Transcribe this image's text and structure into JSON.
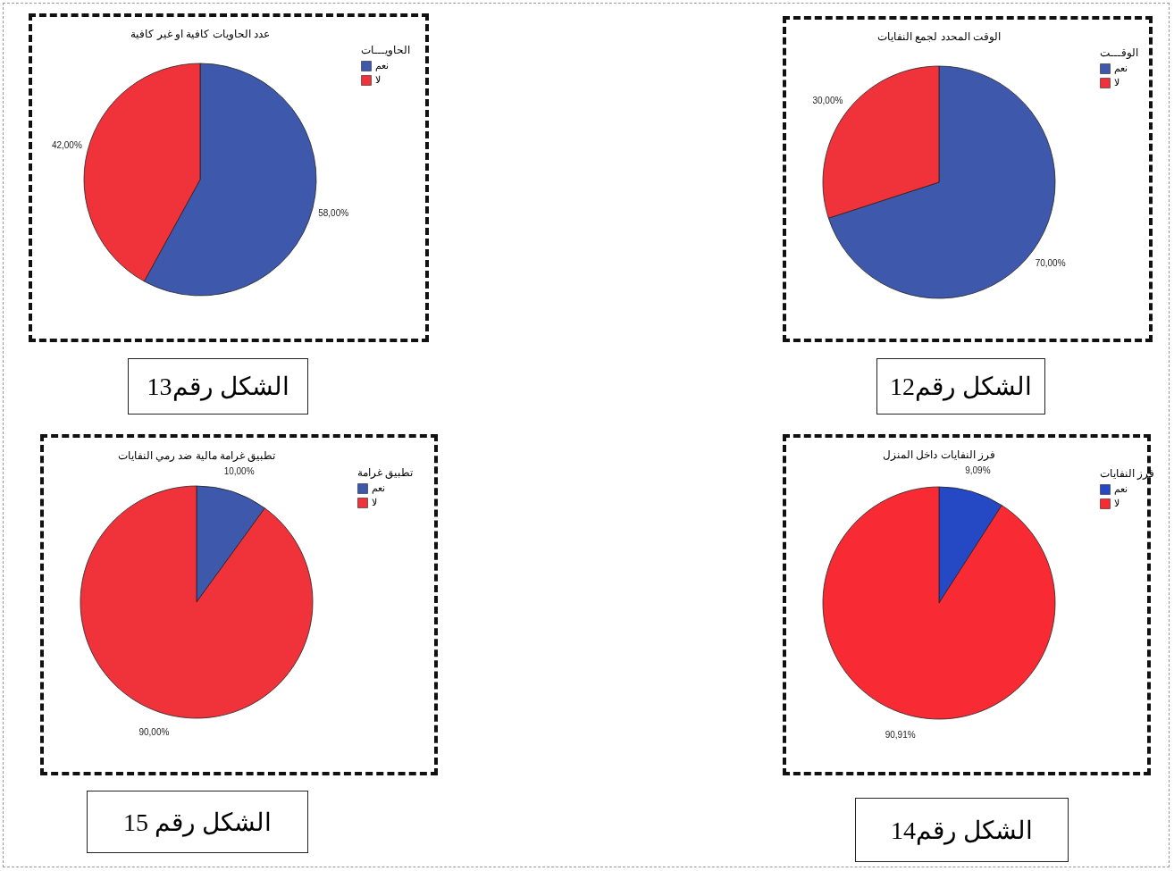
{
  "chart_data": [
    {
      "type": "pie",
      "title": "عدد الحاويات كافية او غير كافية",
      "legend_title": "الحاويـــات",
      "categories": [
        "نعم",
        "لا"
      ],
      "values": [
        58,
        42
      ],
      "colors": [
        "#3e58ac",
        "#f0323a"
      ],
      "value_labels": [
        "58,00%",
        "42,00%"
      ],
      "legend": "right",
      "annotations": [
        "الشكل رقم13"
      ]
    },
    {
      "type": "pie",
      "title": "الوقت المحدد لجمع النفايات",
      "legend_title": "الوقـــت",
      "categories": [
        "نعم",
        "لا"
      ],
      "values": [
        70,
        30
      ],
      "colors": [
        "#3e58ac",
        "#f0323a"
      ],
      "value_labels": [
        "70,00%",
        "30,00%"
      ],
      "legend": "right",
      "annotations": [
        "الشكل رقم12"
      ]
    },
    {
      "type": "pie",
      "title": "تطبيق غرامة مالية ضد رمي النفايات",
      "legend_title": "تطبيق غرامة",
      "categories": [
        "نعم",
        "لا"
      ],
      "values": [
        10,
        90
      ],
      "colors": [
        "#3e58ac",
        "#f0323a"
      ],
      "value_labels": [
        "10,00%",
        "90,00%"
      ],
      "legend": "right",
      "annotations": [
        "الشكل رقم 15"
      ]
    },
    {
      "type": "pie",
      "title": "فرز النفايات داخل المنزل",
      "legend_title": "فرز النفايات",
      "categories": [
        "نعم",
        "لا"
      ],
      "values": [
        9.09,
        90.91
      ],
      "colors": [
        "#2549c4",
        "#f82b34"
      ],
      "value_labels": [
        "9,09%",
        "90,91%"
      ],
      "legend": "right",
      "annotations": [
        "الشكل رقم14"
      ]
    }
  ]
}
